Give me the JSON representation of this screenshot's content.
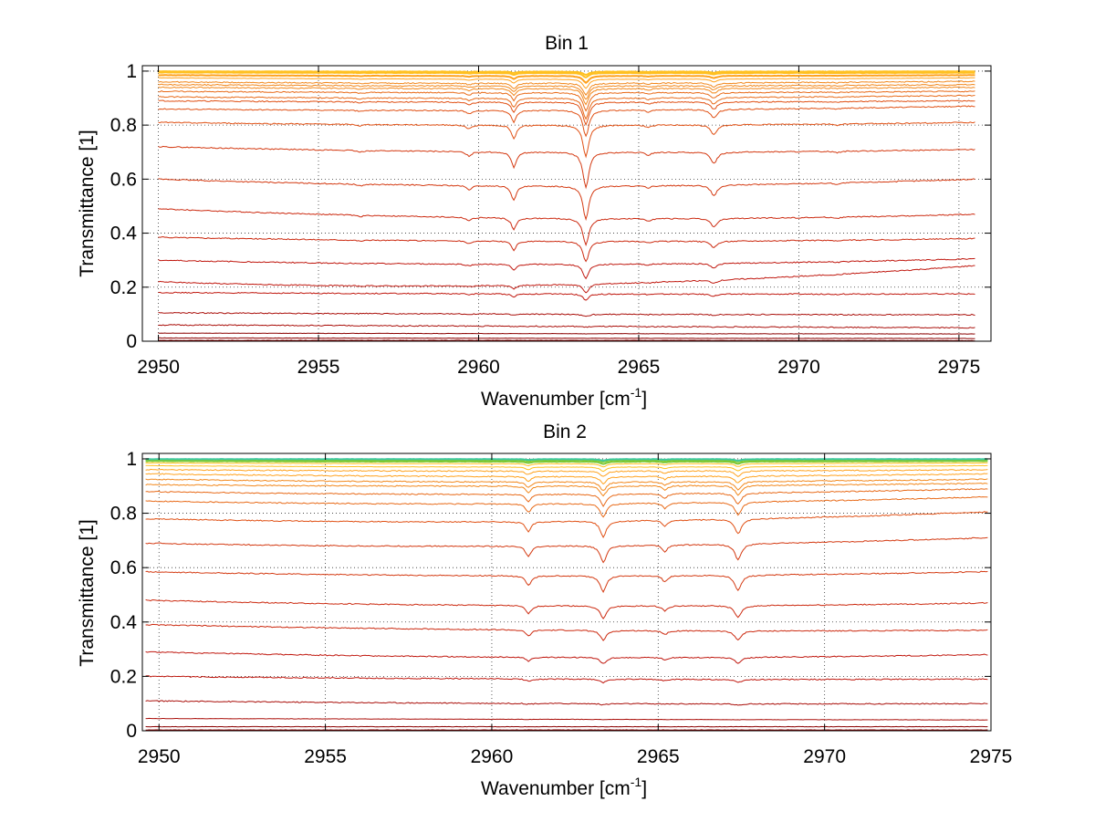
{
  "chart_data": [
    {
      "type": "line",
      "title": "Bin 1",
      "xlabel": "Wavenumber [cm",
      "xlabel_superscript": "-1",
      "xlabel_suffix": "]",
      "ylabel": "Transmittance [1]",
      "xlim": [
        2949.5,
        2976
      ],
      "ylim": [
        0,
        1.02
      ],
      "xticks": [
        2950,
        2955,
        2960,
        2965,
        2970,
        2975
      ],
      "yticks": [
        0,
        0.2,
        0.4,
        0.6,
        0.8,
        1
      ],
      "ytick_labels": [
        "0",
        "0.2",
        "0.4",
        "0.6",
        "0.8",
        "1"
      ],
      "grid": true,
      "x_data_range": [
        2950,
        2975.5
      ],
      "line_colors": [
        "#8b0000",
        "#aa0f0a",
        "#c0180f",
        "#cc2a10",
        "#d43a12",
        "#e05014",
        "#e86a18",
        "#f2881c",
        "#ffa21e",
        "#ffc020"
      ],
      "absorption_lines": [
        {
          "center": 2961.1,
          "depth": 0.42,
          "width": 0.09
        },
        {
          "center": 2963.35,
          "depth": 0.95,
          "width": 0.11
        },
        {
          "center": 2967.35,
          "depth": 0.3,
          "width": 0.12
        },
        {
          "center": 2959.7,
          "depth": 0.12,
          "width": 0.1
        },
        {
          "center": 2965.3,
          "depth": 0.08,
          "width": 0.09
        },
        {
          "center": 2956.3,
          "depth": 0.05,
          "width": 0.1
        },
        {
          "center": 2971.2,
          "depth": 0.04,
          "width": 0.1
        }
      ],
      "series": [
        {
          "continuum": [
            0.003,
            0.003,
            0.002
          ]
        },
        {
          "continuum": [
            0.012,
            0.011,
            0.01
          ]
        },
        {
          "continuum": [
            0.03,
            0.028,
            0.027
          ]
        },
        {
          "continuum": [
            0.06,
            0.055,
            0.05
          ]
        },
        {
          "continuum": [
            0.105,
            0.1,
            0.098
          ]
        },
        {
          "continuum": [
            0.18,
            0.175,
            0.175
          ]
        },
        {
          "continuum": [
            0.22,
            0.21,
            0.28
          ]
        },
        {
          "continuum": [
            0.3,
            0.285,
            0.305
          ]
        },
        {
          "continuum": [
            0.385,
            0.37,
            0.38
          ]
        },
        {
          "continuum": [
            0.49,
            0.455,
            0.47
          ]
        },
        {
          "continuum": [
            0.6,
            0.575,
            0.6
          ]
        },
        {
          "continuum": [
            0.72,
            0.7,
            0.71
          ]
        },
        {
          "continuum": [
            0.81,
            0.8,
            0.81
          ]
        },
        {
          "continuum": [
            0.86,
            0.855,
            0.87
          ]
        },
        {
          "continuum": [
            0.89,
            0.885,
            0.89
          ]
        },
        {
          "continuum": [
            0.905,
            0.9,
            0.91
          ]
        },
        {
          "continuum": [
            0.925,
            0.92,
            0.925
          ]
        },
        {
          "continuum": [
            0.94,
            0.935,
            0.94
          ]
        },
        {
          "continuum": [
            0.95,
            0.945,
            0.95
          ]
        },
        {
          "continuum": [
            0.96,
            0.955,
            0.962
          ]
        },
        {
          "continuum": [
            0.975,
            0.97,
            0.975
          ]
        },
        {
          "continuum": [
            0.985,
            0.982,
            0.985
          ]
        },
        {
          "continuum": [
            0.995,
            0.993,
            0.994
          ]
        },
        {
          "continuum": [
            0.999,
            0.998,
            0.999
          ]
        }
      ]
    },
    {
      "type": "line",
      "title": "Bin 2",
      "xlabel": "Wavenumber [cm",
      "xlabel_superscript": "-1",
      "xlabel_suffix": "]",
      "ylabel": "Transmittance [1]",
      "xlim": [
        2949.5,
        2975
      ],
      "ylim": [
        0,
        1.02
      ],
      "xticks": [
        2950,
        2955,
        2960,
        2965,
        2970,
        2975
      ],
      "yticks": [
        0,
        0.2,
        0.4,
        0.6,
        0.8,
        1
      ],
      "ytick_labels": [
        "0",
        "0.2",
        "0.4",
        "0.6",
        "0.8",
        "1"
      ],
      "grid": true,
      "x_data_range": [
        2949.6,
        2974.9
      ],
      "line_colors": [
        "#8b0000",
        "#aa0f0a",
        "#c0180f",
        "#cc2a10",
        "#d43a12",
        "#e05014",
        "#e86a18",
        "#f2881c",
        "#ffa21e",
        "#ffc020",
        "#7cc832",
        "#40c8a0"
      ],
      "absorption_lines": [
        {
          "center": 2961.1,
          "depth": 0.28,
          "width": 0.1
        },
        {
          "center": 2963.35,
          "depth": 0.45,
          "width": 0.11
        },
        {
          "center": 2965.2,
          "depth": 0.18,
          "width": 0.09
        },
        {
          "center": 2967.4,
          "depth": 0.42,
          "width": 0.12
        }
      ],
      "series": [
        {
          "continuum": [
            0.003,
            0.003,
            0.003
          ]
        },
        {
          "continuum": [
            0.015,
            0.015,
            0.015
          ]
        },
        {
          "continuum": [
            0.045,
            0.042,
            0.04
          ]
        },
        {
          "continuum": [
            0.11,
            0.1,
            0.1
          ]
        },
        {
          "continuum": [
            0.2,
            0.19,
            0.19
          ]
        },
        {
          "continuum": [
            0.29,
            0.27,
            0.28
          ]
        },
        {
          "continuum": [
            0.39,
            0.37,
            0.37
          ]
        },
        {
          "continuum": [
            0.48,
            0.46,
            0.47
          ]
        },
        {
          "continuum": [
            0.585,
            0.57,
            0.585
          ]
        },
        {
          "continuum": [
            0.69,
            0.68,
            0.71
          ]
        },
        {
          "continuum": [
            0.78,
            0.77,
            0.805
          ]
        },
        {
          "continuum": [
            0.845,
            0.835,
            0.86
          ]
        },
        {
          "continuum": [
            0.88,
            0.87,
            0.89
          ]
        },
        {
          "continuum": [
            0.905,
            0.9,
            0.91
          ]
        },
        {
          "continuum": [
            0.925,
            0.915,
            0.925
          ]
        },
        {
          "continuum": [
            0.945,
            0.935,
            0.945
          ]
        },
        {
          "continuum": [
            0.96,
            0.955,
            0.96
          ]
        },
        {
          "continuum": [
            0.975,
            0.97,
            0.975
          ]
        },
        {
          "continuum": [
            0.985,
            0.982,
            0.985
          ]
        },
        {
          "continuum": [
            0.992,
            0.99,
            0.992
          ]
        },
        {
          "continuum": [
            0.997,
            0.996,
            0.997
          ]
        },
        {
          "continuum": [
            0.999,
            0.999,
            0.999
          ]
        }
      ]
    }
  ]
}
